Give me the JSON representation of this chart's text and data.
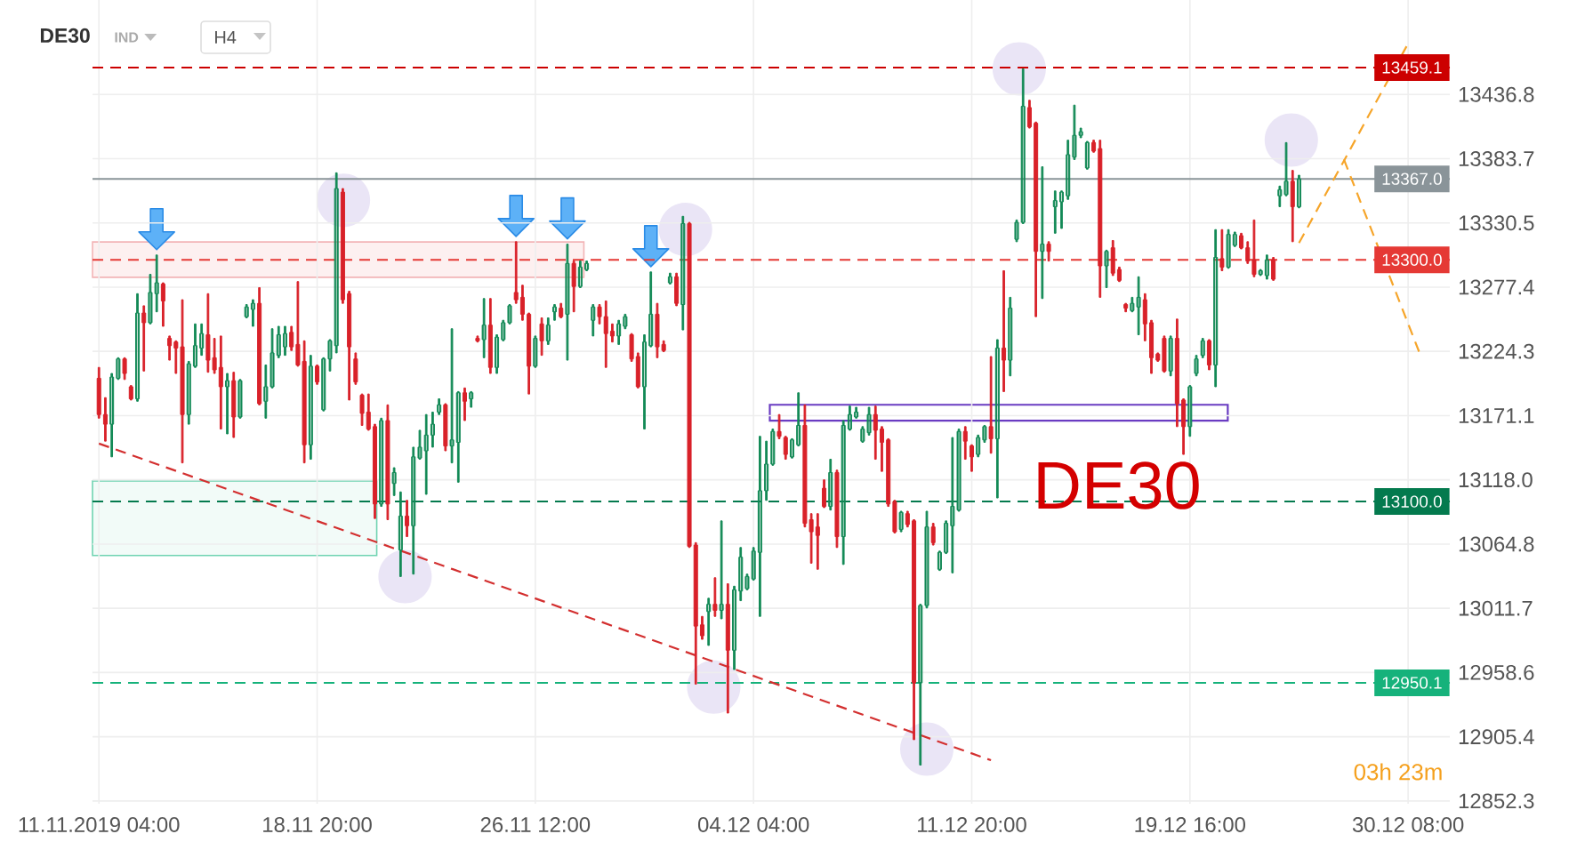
{
  "chart_data": {
    "type": "candlestick",
    "title": "DE30",
    "subtitle": "IND",
    "categories": [
      "11.11.2019 04:00",
      null,
      null,
      null,
      null,
      null,
      null,
      null,
      null,
      null,
      null,
      null,
      null,
      null,
      null,
      null,
      null,
      null,
      null,
      null,
      null,
      null,
      null,
      null,
      null,
      null,
      null,
      null,
      null,
      null,
      null,
      null,
      null,
      null,
      "18.11 20:00",
      null,
      null,
      null,
      null,
      null,
      null,
      null,
      null,
      null,
      null,
      null,
      null,
      null,
      null,
      null,
      null,
      null,
      null,
      null,
      null,
      null,
      null,
      null,
      null,
      null,
      null,
      null,
      null,
      null,
      null,
      null,
      null,
      null,
      "26.11 12:00",
      null,
      null,
      null,
      null,
      null,
      null,
      null,
      null,
      null,
      null,
      null,
      null,
      null,
      null,
      null,
      null,
      null,
      null,
      null,
      null,
      null,
      null,
      null,
      null,
      null,
      null,
      null,
      null,
      null,
      null,
      null,
      null,
      null,
      "04.12 04:00",
      null,
      null,
      null,
      null,
      null,
      null,
      null,
      null,
      null,
      null,
      null,
      null,
      null,
      null,
      null,
      null,
      null,
      null,
      null,
      null,
      null,
      null,
      null,
      null,
      null,
      null,
      null,
      null,
      null,
      null,
      null,
      null,
      null,
      "11.12 20:00",
      null,
      null,
      null,
      null,
      null,
      null,
      null,
      null,
      null,
      null,
      null,
      null,
      null,
      null,
      null,
      null,
      null,
      null,
      null,
      null,
      null,
      null,
      null,
      null,
      null,
      null,
      null,
      null,
      null,
      null,
      null,
      null,
      null,
      "19.12 16:00",
      null,
      null,
      null,
      null,
      null,
      null,
      null,
      null,
      null,
      null,
      null,
      null,
      null,
      null,
      null,
      null,
      null,
      null,
      null,
      null,
      null,
      null,
      null,
      null,
      null,
      null,
      null,
      null,
      null,
      null,
      null,
      null,
      null,
      "30.12 08:00",
      null,
      null,
      null,
      null,
      null,
      null
    ],
    "ohlc": [
      [
        13202,
        13211,
        13169,
        13172
      ],
      [
        13172,
        13186,
        13150,
        13164
      ],
      [
        13164,
        13206,
        13137,
        13203
      ],
      [
        13202,
        13219,
        13201,
        13218
      ],
      [
        13218,
        13219,
        13201,
        13206
      ],
      [
        13195,
        13196,
        13184,
        13185
      ],
      [
        13185,
        13272,
        13183,
        13256
      ],
      [
        13256,
        13262,
        13208,
        13248
      ],
      [
        13248,
        13288,
        13247,
        13273
      ],
      [
        13272,
        13304,
        13257,
        13281
      ],
      [
        13280,
        13281,
        13245,
        13266
      ],
      [
        13235,
        13237,
        13217,
        13229
      ],
      [
        13232,
        13233,
        13206,
        13227
      ],
      [
        13228,
        13267,
        13132,
        13172
      ],
      [
        13172,
        13216,
        13164,
        13214
      ],
      [
        13212,
        13247,
        13211,
        13229
      ],
      [
        13227,
        13247,
        13221,
        13239
      ],
      [
        13238,
        13272,
        13207,
        13217
      ],
      [
        13219,
        13235,
        13206,
        13209
      ],
      [
        13211,
        13237,
        13160,
        13195
      ],
      [
        13195,
        13206,
        13156,
        13200
      ],
      [
        13200,
        13207,
        13153,
        13170
      ],
      [
        13170,
        13201,
        13169,
        13200
      ],
      [
        13253,
        13263,
        13252,
        13261
      ],
      [
        13259,
        13267,
        13245,
        13264
      ],
      [
        13264,
        13277,
        13180,
        13181
      ],
      [
        13183,
        13213,
        13169,
        13195
      ],
      [
        13195,
        13243,
        13194,
        13223
      ],
      [
        13221,
        13245,
        13219,
        13238
      ],
      [
        13228,
        13245,
        13221,
        13239
      ],
      [
        13240,
        13245,
        13225,
        13228
      ],
      [
        13230,
        13282,
        13212,
        13213
      ],
      [
        13216,
        13233,
        13132,
        13147
      ],
      [
        13147,
        13221,
        13135,
        13212
      ],
      [
        13212,
        13213,
        13197,
        13199
      ],
      [
        13176,
        13219,
        13175,
        13218
      ],
      [
        13218,
        13234,
        13208,
        13233
      ],
      [
        13229,
        13372,
        13223,
        13359
      ],
      [
        13356,
        13359,
        13264,
        13267
      ],
      [
        13272,
        13274,
        13184,
        13228
      ],
      [
        13218,
        13223,
        13197,
        13199
      ],
      [
        13188,
        13189,
        13163,
        13173
      ],
      [
        13174,
        13189,
        13159,
        13160
      ],
      [
        13162,
        13164,
        13086,
        13098
      ],
      [
        13098,
        13169,
        13096,
        13167
      ],
      [
        13167,
        13180,
        13085,
        13098
      ],
      [
        13115,
        13128,
        13105,
        13124
      ],
      [
        13060,
        13108,
        13038,
        13088
      ],
      [
        13088,
        13101,
        13071,
        13080
      ],
      [
        13080,
        13145,
        13040,
        13137
      ],
      [
        13136,
        13159,
        13135,
        13145
      ],
      [
        13142,
        13172,
        13106,
        13155
      ],
      [
        13155,
        13174,
        13145,
        13164
      ],
      [
        13174,
        13185,
        13172,
        13180
      ],
      [
        13180,
        13181,
        13142,
        13146
      ],
      [
        13146,
        13243,
        13132,
        13151
      ],
      [
        13149,
        13191,
        13116,
        13190
      ],
      [
        13190,
        13194,
        13167,
        13183
      ],
      [
        13185,
        13191,
        13178,
        13190
      ],
      [
        13235,
        13237,
        13232,
        13233
      ],
      [
        13234,
        13268,
        13219,
        13246
      ],
      [
        13246,
        13268,
        13206,
        13211
      ],
      [
        13211,
        13238,
        13206,
        13236
      ],
      [
        13234,
        13250,
        13233,
        13248
      ],
      [
        13248,
        13263,
        13247,
        13262
      ],
      [
        13273,
        13315,
        13264,
        13267
      ],
      [
        13269,
        13279,
        13250,
        13255
      ],
      [
        13255,
        13256,
        13189,
        13212
      ],
      [
        13212,
        13237,
        13211,
        13235
      ],
      [
        13247,
        13252,
        13221,
        13233
      ],
      [
        13233,
        13252,
        13230,
        13246
      ],
      [
        13257,
        13263,
        13250,
        13261
      ],
      [
        13260,
        13264,
        13252,
        13253
      ],
      [
        13255,
        13313,
        13217,
        13297
      ],
      [
        13297,
        13299,
        13257,
        13278
      ],
      [
        13278,
        13299,
        13277,
        13294
      ],
      [
        13292,
        13299,
        13291,
        13297
      ],
      [
        13250,
        13263,
        13237,
        13261
      ],
      [
        13261,
        13263,
        13247,
        13253
      ],
      [
        13253,
        13266,
        13211,
        13239
      ],
      [
        13241,
        13247,
        13232,
        13237
      ],
      [
        13237,
        13250,
        13230,
        13247
      ],
      [
        13245,
        13255,
        13243,
        13253
      ],
      [
        13238,
        13239,
        13216,
        13218
      ],
      [
        13220,
        13223,
        13194,
        13195
      ],
      [
        13195,
        13238,
        13160,
        13232
      ],
      [
        13229,
        13290,
        13228,
        13255
      ],
      [
        13255,
        13264,
        13219,
        13228
      ],
      [
        13230,
        13233,
        13224,
        13225
      ],
      [
        13281,
        13289,
        13280,
        13286
      ],
      [
        13286,
        13289,
        13262,
        13264
      ],
      [
        13263,
        13336,
        13242,
        13330
      ],
      [
        13330,
        13331,
        13062,
        13063
      ],
      [
        13064,
        13066,
        12949,
        12997
      ],
      [
        12998,
        13005,
        12986,
        12989
      ],
      [
        13009,
        13020,
        12981,
        13015
      ],
      [
        13015,
        13037,
        13005,
        13010
      ],
      [
        13010,
        13084,
        13003,
        13015
      ],
      [
        13015,
        13032,
        12925,
        12977
      ],
      [
        12977,
        13030,
        12961,
        13027
      ],
      [
        13026,
        13062,
        13018,
        13054
      ],
      [
        13028,
        13040,
        13027,
        13038
      ],
      [
        13036,
        13062,
        13035,
        13059
      ],
      [
        13058,
        13154,
        13005,
        13109
      ],
      [
        13109,
        13150,
        13101,
        13131
      ],
      [
        13131,
        13160,
        13130,
        13158
      ],
      [
        13158,
        13172,
        13152,
        13154
      ],
      [
        13153,
        13154,
        13135,
        13139
      ],
      [
        13137,
        13152,
        13136,
        13151
      ],
      [
        13147,
        13190,
        13146,
        13163
      ],
      [
        13163,
        13180,
        13079,
        13082
      ],
      [
        13085,
        13090,
        13049,
        13075
      ],
      [
        13079,
        13090,
        13044,
        13072
      ],
      [
        13111,
        13118,
        13095,
        13096
      ],
      [
        13096,
        13135,
        13093,
        13124
      ],
      [
        13124,
        13126,
        13062,
        13071
      ],
      [
        13071,
        13167,
        13048,
        13163
      ],
      [
        13160,
        13179,
        13159,
        13172
      ],
      [
        13170,
        13178,
        13169,
        13174
      ],
      [
        13150,
        13162,
        13149,
        13160
      ],
      [
        13157,
        13178,
        13155,
        13172
      ],
      [
        13172,
        13179,
        13135,
        13159
      ],
      [
        13160,
        13162,
        13125,
        13149
      ],
      [
        13151,
        13152,
        13096,
        13098
      ],
      [
        13100,
        13101,
        13074,
        13075
      ],
      [
        13077,
        13092,
        13075,
        13091
      ],
      [
        13090,
        13092,
        13079,
        13081
      ],
      [
        13084,
        13085,
        12903,
        12950
      ],
      [
        12950,
        13015,
        12882,
        13014
      ],
      [
        13014,
        13092,
        13012,
        13079
      ],
      [
        13079,
        13082,
        13064,
        13066
      ],
      [
        13044,
        13059,
        13043,
        13058
      ],
      [
        13058,
        13084,
        13057,
        13082
      ],
      [
        13080,
        13153,
        13041,
        13096
      ],
      [
        13093,
        13160,
        13092,
        13158
      ],
      [
        13158,
        13162,
        13135,
        13150
      ],
      [
        13146,
        13147,
        13125,
        13137
      ],
      [
        13139,
        13155,
        13137,
        13153
      ],
      [
        13151,
        13163,
        13149,
        13162
      ],
      [
        13162,
        13220,
        13140,
        13152
      ],
      [
        13152,
        13234,
        13103,
        13227
      ],
      [
        13227,
        13291,
        13191,
        13217
      ],
      [
        13217,
        13269,
        13204,
        13260
      ],
      [
        13317,
        13333,
        13315,
        13331
      ],
      [
        13331,
        13458,
        13330,
        13427
      ],
      [
        13426,
        13432,
        13409,
        13410
      ],
      [
        13413,
        13414,
        13253,
        13307
      ],
      [
        13307,
        13377,
        13268,
        13313
      ],
      [
        13313,
        13315,
        13299,
        13307
      ],
      [
        13344,
        13357,
        13322,
        13349
      ],
      [
        13348,
        13357,
        13326,
        13356
      ],
      [
        13353,
        13399,
        13350,
        13387
      ],
      [
        13385,
        13428,
        13383,
        13403
      ],
      [
        13403,
        13409,
        13401,
        13406
      ],
      [
        13376,
        13398,
        13375,
        13397
      ],
      [
        13397,
        13399,
        13389,
        13390
      ],
      [
        13392,
        13399,
        13269,
        13295
      ],
      [
        13295,
        13308,
        13277,
        13307
      ],
      [
        13310,
        13316,
        13287,
        13289
      ],
      [
        13292,
        13294,
        13282,
        13283
      ],
      [
        13263,
        13264,
        13257,
        13260
      ],
      [
        13258,
        13269,
        13257,
        13264
      ],
      [
        13261,
        13286,
        13238,
        13269
      ],
      [
        13267,
        13272,
        13233,
        13247
      ],
      [
        13248,
        13250,
        13206,
        13219
      ],
      [
        13222,
        13223,
        13216,
        13217
      ],
      [
        13235,
        13237,
        13207,
        13208
      ],
      [
        13208,
        13237,
        13204,
        13235
      ],
      [
        13235,
        13251,
        13162,
        13181
      ],
      [
        13184,
        13185,
        13139,
        13162
      ],
      [
        13162,
        13196,
        13154,
        13195
      ],
      [
        13206,
        13221,
        13204,
        13218
      ],
      [
        13221,
        13235,
        13219,
        13233
      ],
      [
        13233,
        13234,
        13209,
        13213
      ],
      [
        13213,
        13325,
        13195,
        13302
      ],
      [
        13301,
        13325,
        13291,
        13294
      ],
      [
        13294,
        13325,
        13293,
        13321
      ],
      [
        13312,
        13323,
        13311,
        13321
      ],
      [
        13320,
        13322,
        13309,
        13310
      ],
      [
        13310,
        13315,
        13297,
        13299
      ],
      [
        13300,
        13333,
        13286,
        13288
      ],
      [
        13288,
        13292,
        13287,
        13291
      ],
      [
        13287,
        13304,
        13284,
        13300
      ],
      [
        13300,
        13302,
        13283,
        13284
      ],
      [
        13353,
        13361,
        13344,
        13358
      ],
      [
        13354,
        13397,
        13353,
        13365
      ],
      [
        13365,
        13374,
        13315,
        13344
      ],
      [
        13344,
        13370,
        13343,
        13367
      ],
      null,
      null,
      null,
      null,
      null,
      null,
      null,
      null,
      null,
      null,
      null,
      null,
      null,
      null,
      null,
      null,
      null,
      null,
      null,
      null,
      null,
      null,
      null
    ],
    "colors": [
      "#d9222a",
      "#d9222a",
      "#138a56",
      "#138a56",
      "#d9222a",
      "#d9222a",
      "#138a56",
      "#d9222a",
      "#138a56",
      "#138a56",
      "#d9222a",
      "#d9222a",
      "#d9222a",
      "#d9222a",
      "#138a56",
      "#138a56",
      "#138a56",
      "#d9222a",
      "#d9222a",
      "#d9222a",
      "#138a56",
      "#d9222a",
      "#138a56",
      "#138a56",
      "#138a56",
      "#d9222a",
      "#138a56",
      "#138a56",
      "#138a56",
      "#138a56",
      "#d9222a",
      "#d9222a",
      "#d9222a",
      "#138a56",
      "#d9222a",
      "#138a56",
      "#138a56",
      "#138a56",
      "#d9222a",
      "#d9222a",
      "#d9222a",
      "#d9222a",
      "#d9222a",
      "#d9222a",
      "#138a56",
      "#d9222a",
      "#138a56",
      "#138a56",
      "#d9222a",
      "#138a56",
      "#138a56",
      "#138a56",
      "#138a56",
      "#138a56",
      "#d9222a",
      "#138a56",
      "#138a56",
      "#d9222a",
      "#138a56",
      "#d9222a",
      "#138a56",
      "#d9222a",
      "#138a56",
      "#138a56",
      "#138a56",
      "#d9222a",
      "#d9222a",
      "#d9222a",
      "#138a56",
      "#d9222a",
      "#138a56",
      "#138a56",
      "#d9222a",
      "#138a56",
      "#d9222a",
      "#138a56",
      "#138a56",
      "#138a56",
      "#d9222a",
      "#d9222a",
      "#d9222a",
      "#138a56",
      "#138a56",
      "#d9222a",
      "#d9222a",
      "#138a56",
      "#138a56",
      "#d9222a",
      "#d9222a",
      "#138a56",
      "#d9222a",
      "#138a56",
      "#d9222a",
      "#d9222a",
      "#d9222a",
      "#138a56",
      "#d9222a",
      "#138a56",
      "#d9222a",
      "#138a56",
      "#138a56",
      "#138a56",
      "#138a56",
      "#138a56",
      "#138a56",
      "#138a56",
      "#d9222a",
      "#d9222a",
      "#138a56",
      "#138a56",
      "#d9222a",
      "#d9222a",
      "#d9222a",
      "#d9222a",
      "#138a56",
      "#d9222a",
      "#138a56",
      "#138a56",
      "#138a56",
      "#138a56",
      "#138a56",
      "#d9222a",
      "#d9222a",
      "#d9222a",
      "#d9222a",
      "#138a56",
      "#d9222a",
      "#d9222a",
      "#138a56",
      "#138a56",
      "#d9222a",
      "#138a56",
      "#138a56",
      "#138a56",
      "#138a56",
      "#d9222a",
      "#d9222a",
      "#138a56",
      "#138a56",
      "#d9222a",
      "#138a56",
      "#d9222a",
      "#138a56",
      "#138a56",
      "#138a56",
      "#d9222a",
      "#d9222a",
      "#138a56",
      "#d9222a",
      "#138a56",
      "#138a56",
      "#138a56",
      "#138a56",
      "#138a56",
      "#138a56",
      "#d9222a",
      "#d9222a",
      "#138a56",
      "#d9222a",
      "#d9222a",
      "#d9222a",
      "#138a56",
      "#138a56",
      "#d9222a",
      "#d9222a",
      "#d9222a",
      "#d9222a",
      "#138a56",
      "#d9222a",
      "#d9222a",
      "#138a56",
      "#138a56",
      "#138a56",
      "#d9222a",
      "#138a56",
      "#d9222a",
      "#138a56",
      "#138a56",
      "#d9222a",
      "#d9222a",
      "#d9222a",
      "#138a56",
      "#138a56",
      "#d9222a",
      "#138a56",
      "#138a56",
      "#d9222a",
      "#138a56",
      null,
      null,
      null,
      null,
      null,
      null,
      null,
      null,
      null,
      null,
      null,
      null,
      null,
      null,
      null,
      null,
      null,
      null,
      null,
      null,
      null,
      null,
      null
    ],
    "series": [
      {
        "type": "line",
        "color": "#d32f2f",
        "line_style": "dashed",
        "values": [
          13148,
          null,
          null,
          null,
          null,
          null,
          null,
          null,
          null,
          null,
          null,
          null,
          null,
          null,
          null,
          null,
          null,
          null,
          null,
          null,
          null,
          null,
          null,
          null,
          null,
          null,
          null,
          null,
          null,
          null,
          null,
          null,
          null,
          null,
          null,
          null,
          null,
          null,
          null,
          null,
          null,
          null,
          null,
          null,
          null,
          null,
          null,
          null,
          null,
          null,
          null,
          null,
          null,
          null,
          null,
          null,
          null,
          null,
          null,
          null,
          null,
          null,
          null,
          null,
          null,
          null,
          null,
          null,
          null,
          null,
          null,
          null,
          null,
          null,
          null,
          null,
          null,
          null,
          null,
          null,
          null,
          null,
          null,
          null,
          null,
          null,
          null,
          null,
          null,
          null,
          null,
          null,
          null,
          null,
          null,
          null,
          null,
          null,
          null,
          null,
          null,
          null,
          null,
          null,
          null,
          null,
          null,
          null,
          null,
          null,
          null,
          null,
          null,
          null,
          null,
          null,
          null,
          null,
          null,
          null,
          null,
          null,
          null,
          null,
          null,
          null,
          null,
          null,
          null,
          null,
          null,
          null,
          null,
          null,
          null,
          null,
          null,
          null,
          null,
          12886,
          null,
          null,
          null,
          null,
          null,
          null,
          null,
          null,
          null,
          null,
          null,
          null,
          null,
          null,
          null,
          null,
          null,
          null,
          null,
          null,
          null,
          null,
          null,
          null,
          null,
          null,
          null,
          null,
          null,
          null,
          null,
          null,
          null,
          null,
          null,
          null,
          null,
          null,
          null,
          null,
          null,
          null,
          null,
          null,
          null,
          null,
          null,
          null,
          null,
          null,
          null,
          null,
          null,
          null,
          null,
          null,
          null,
          null,
          null,
          null,
          null,
          null,
          null,
          null,
          null,
          null,
          null,
          null,
          null,
          null,
          null
        ]
      },
      {
        "type": "line",
        "color": "#f6a52a",
        "line_style": "dashed",
        "values": [
          null,
          null,
          null,
          null,
          null,
          null,
          null,
          null,
          null,
          null,
          null,
          null,
          null,
          null,
          null,
          null,
          null,
          null,
          null,
          null,
          null,
          null,
          null,
          null,
          null,
          null,
          null,
          null,
          null,
          null,
          null,
          null,
          null,
          null,
          null,
          null,
          null,
          null,
          null,
          null,
          null,
          null,
          null,
          null,
          null,
          null,
          null,
          null,
          null,
          null,
          null,
          null,
          null,
          null,
          null,
          null,
          null,
          null,
          null,
          null,
          null,
          null,
          null,
          null,
          null,
          null,
          null,
          null,
          null,
          null,
          null,
          null,
          null,
          null,
          null,
          null,
          null,
          null,
          null,
          null,
          null,
          null,
          null,
          null,
          null,
          null,
          null,
          null,
          null,
          null,
          null,
          null,
          null,
          null,
          null,
          null,
          null,
          null,
          null,
          null,
          null,
          null,
          null,
          null,
          null,
          null,
          null,
          null,
          null,
          null,
          null,
          null,
          null,
          null,
          null,
          null,
          null,
          null,
          null,
          null,
          null,
          null,
          null,
          null,
          null,
          null,
          null,
          null,
          null,
          null,
          null,
          null,
          null,
          null,
          null,
          null,
          null,
          null,
          null,
          null,
          null,
          null,
          null,
          null,
          null,
          null,
          null,
          null,
          null,
          null,
          null,
          null,
          null,
          null,
          null,
          null,
          null,
          null,
          null,
          null,
          null,
          null,
          null,
          null,
          null,
          null,
          null,
          null,
          null,
          null,
          null,
          null,
          null,
          null,
          null,
          null,
          null,
          null,
          null,
          null,
          null,
          null,
          null,
          null,
          null,
          null,
          null,
          13314,
          null,
          null,
          null,
          null,
          null,
          null,
          null,
          null,
          null,
          null,
          null,
          null,
          null,
          null,
          null,
          null,
          13479,
          null,
          null,
          null,
          null,
          null,
          null
        ]
      },
      {
        "type": "line",
        "color": "#f6a52a",
        "line_style": "dashed",
        "values": [
          null,
          null,
          null,
          null,
          null,
          null,
          null,
          null,
          null,
          null,
          null,
          null,
          null,
          null,
          null,
          null,
          null,
          null,
          null,
          null,
          null,
          null,
          null,
          null,
          null,
          null,
          null,
          null,
          null,
          null,
          null,
          null,
          null,
          null,
          null,
          null,
          null,
          null,
          null,
          null,
          null,
          null,
          null,
          null,
          null,
          null,
          null,
          null,
          null,
          null,
          null,
          null,
          null,
          null,
          null,
          null,
          null,
          null,
          null,
          null,
          null,
          null,
          null,
          null,
          null,
          null,
          null,
          null,
          null,
          null,
          null,
          null,
          null,
          null,
          null,
          null,
          null,
          null,
          null,
          null,
          null,
          null,
          null,
          null,
          null,
          null,
          null,
          null,
          null,
          null,
          null,
          null,
          null,
          null,
          null,
          null,
          null,
          null,
          null,
          null,
          null,
          null,
          null,
          null,
          null,
          null,
          null,
          null,
          null,
          null,
          null,
          null,
          null,
          null,
          null,
          null,
          null,
          null,
          null,
          null,
          null,
          null,
          null,
          null,
          null,
          null,
          null,
          null,
          null,
          null,
          null,
          null,
          null,
          null,
          null,
          null,
          null,
          null,
          null,
          null,
          null,
          null,
          null,
          null,
          null,
          null,
          null,
          null,
          null,
          null,
          null,
          null,
          null,
          null,
          null,
          null,
          null,
          null,
          null,
          null,
          null,
          null,
          null,
          null,
          null,
          null,
          null,
          null,
          null,
          null,
          null,
          null,
          null,
          null,
          null,
          null,
          null,
          null,
          null,
          null,
          null,
          null,
          null,
          null,
          null,
          null,
          null,
          null,
          null,
          null,
          null,
          null,
          null,
          null,
          13383,
          null,
          null,
          null,
          null,
          null,
          null,
          null,
          null,
          null,
          null,
          null,
          13220,
          null,
          null,
          null,
          null
        ]
      }
    ],
    "ylim": [
      12850,
      13515
    ],
    "yticks": [
      13436.8,
      13383.7,
      13330.5,
      13277.4,
      13224.3,
      13171.1,
      {
        "value": 13118,
        "label": "13118.0"
      },
      13064.8,
      13011.7,
      12958.6,
      12905.4,
      12852.3
    ],
    "ref_lines": [
      {
        "axis": "y",
        "value": 13459.1,
        "label": "13459.1",
        "color": "#cc0000",
        "line_style": "dashed"
      },
      {
        "axis": "y",
        "value": 13367.0,
        "label": "13367.0",
        "color": "#8a9499",
        "line_style": "solid"
      },
      {
        "axis": "y",
        "value": 13300.0,
        "label": "13300.0",
        "color": "#e53935",
        "line_style": "dashed"
      },
      {
        "axis": "y",
        "value": 13100.0,
        "label": "13100.0",
        "color": "#047a4e",
        "line_style": "dashed"
      },
      {
        "axis": "y",
        "value": 12950.1,
        "label": "12950.1",
        "color": "#16b27b",
        "line_style": "dashed"
      }
    ],
    "grid": true,
    "annotations": [
      "H4",
      "DE30",
      "03h 23m"
    ]
  }
}
